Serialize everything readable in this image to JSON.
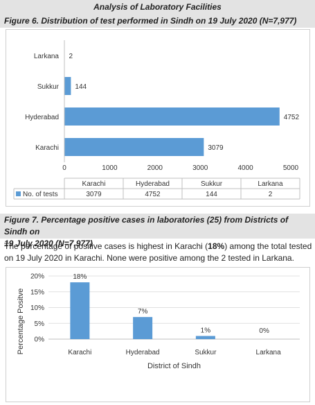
{
  "header": {
    "section_title": "Analysis of Laboratory Facilities"
  },
  "figure6": {
    "title": "Figure 6. Distribution of test performed in Sindh on 19 July 2020 (N=7,977)"
  },
  "figure7": {
    "title_line1": "Figure 7. Percentage positive cases in laboratories (25) from Districts of Sindh on",
    "title_line2": "19 July 2020 (N=7,977)"
  },
  "paragraph": {
    "before": "The percentage of positive cases is highest in Karachi (",
    "highlight": "18%",
    "after": ") among the total tested on 19 July 2020 in Karachi. None were positive among the 2 tested in Larkana."
  },
  "colors": {
    "bar": "#5b9bd5",
    "header_bg": "#e3e3e3"
  },
  "chart_data": [
    {
      "type": "bar",
      "orientation": "horizontal",
      "categories": [
        "Karachi",
        "Hyderabad",
        "Sukkur",
        "Larkana"
      ],
      "series": [
        {
          "name": "No. of tests",
          "values": [
            3079,
            4752,
            144,
            2
          ]
        }
      ],
      "xlim": [
        0,
        5000
      ],
      "xticks": [
        "0",
        "1000",
        "2000",
        "3000",
        "4000",
        "5000"
      ],
      "data_labels": [
        "3079",
        "4752",
        "144",
        "2"
      ],
      "data_table": true,
      "grid": false
    },
    {
      "type": "bar",
      "categories": [
        "Karachi",
        "Hyderabad",
        "Sukkur",
        "Larkana"
      ],
      "values": [
        18,
        7,
        1,
        0
      ],
      "data_labels": [
        "18%",
        "7%",
        "1%",
        "0%"
      ],
      "ylim": [
        0,
        20
      ],
      "yticks": [
        "0%",
        "5%",
        "10%",
        "15%",
        "20%"
      ],
      "xlabel": "District of Sindh",
      "ylabel": "Percentage Positve",
      "grid": true
    }
  ]
}
